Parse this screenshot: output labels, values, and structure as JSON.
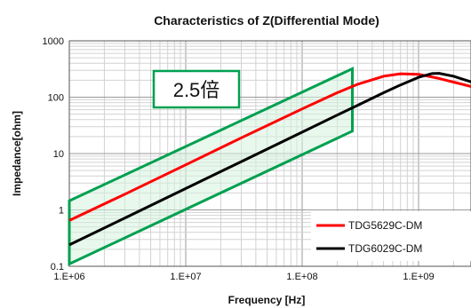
{
  "chart_data": {
    "type": "line",
    "title": "Characteristics of Z(Differential Mode)",
    "xlabel": "Frequency [Hz]",
    "ylabel": "Impedance[ohm]",
    "x_scale": "log",
    "y_scale": "log",
    "xlim": [
      1000000,
      4000000000
    ],
    "ylim": [
      0.1,
      1000
    ],
    "grid": true,
    "legend_position": "bottom-right",
    "x_tick_labels": [
      "1.E+06",
      "1.E+07",
      "1.E+08",
      "1.E+09"
    ],
    "x_tick_values": [
      1000000,
      10000000,
      100000000,
      1000000000
    ],
    "y_tick_labels": [
      "1000",
      "100",
      "10",
      "1",
      "0.1"
    ],
    "y_tick_values": [
      1000,
      100,
      10,
      1,
      0.1
    ],
    "series": [
      {
        "name": "TDG5629C-DM",
        "color": "#ff0000",
        "x": [
          1000000,
          3000000,
          10000000,
          30000000,
          100000000,
          200000000,
          300000000,
          500000000,
          700000000,
          1000000000,
          1500000000,
          2000000000,
          3000000000,
          4000000000
        ],
        "y": [
          0.65,
          1.9,
          6.3,
          19,
          62,
          120,
          170,
          235,
          260,
          255,
          215,
          185,
          150,
          125
        ]
      },
      {
        "name": "TDG6029C-DM",
        "color": "#000000",
        "x": [
          1000000,
          3000000,
          10000000,
          30000000,
          100000000,
          200000000,
          300000000,
          500000000,
          700000000,
          1000000000,
          1300000000,
          1500000000,
          2000000000,
          3000000000,
          4000000000
        ],
        "y": [
          0.24,
          0.72,
          2.4,
          7.2,
          24,
          48,
          72,
          120,
          165,
          225,
          262,
          265,
          235,
          180,
          140
        ]
      }
    ],
    "annotation": {
      "label": "2.5倍",
      "band_color": "#00a050",
      "band_fill": "#d6f2de",
      "band_x": [
        1000000,
        270000000
      ],
      "band_bottom_y": [
        0.11,
        25
      ],
      "band_top_y": [
        1.45,
        320
      ]
    }
  }
}
